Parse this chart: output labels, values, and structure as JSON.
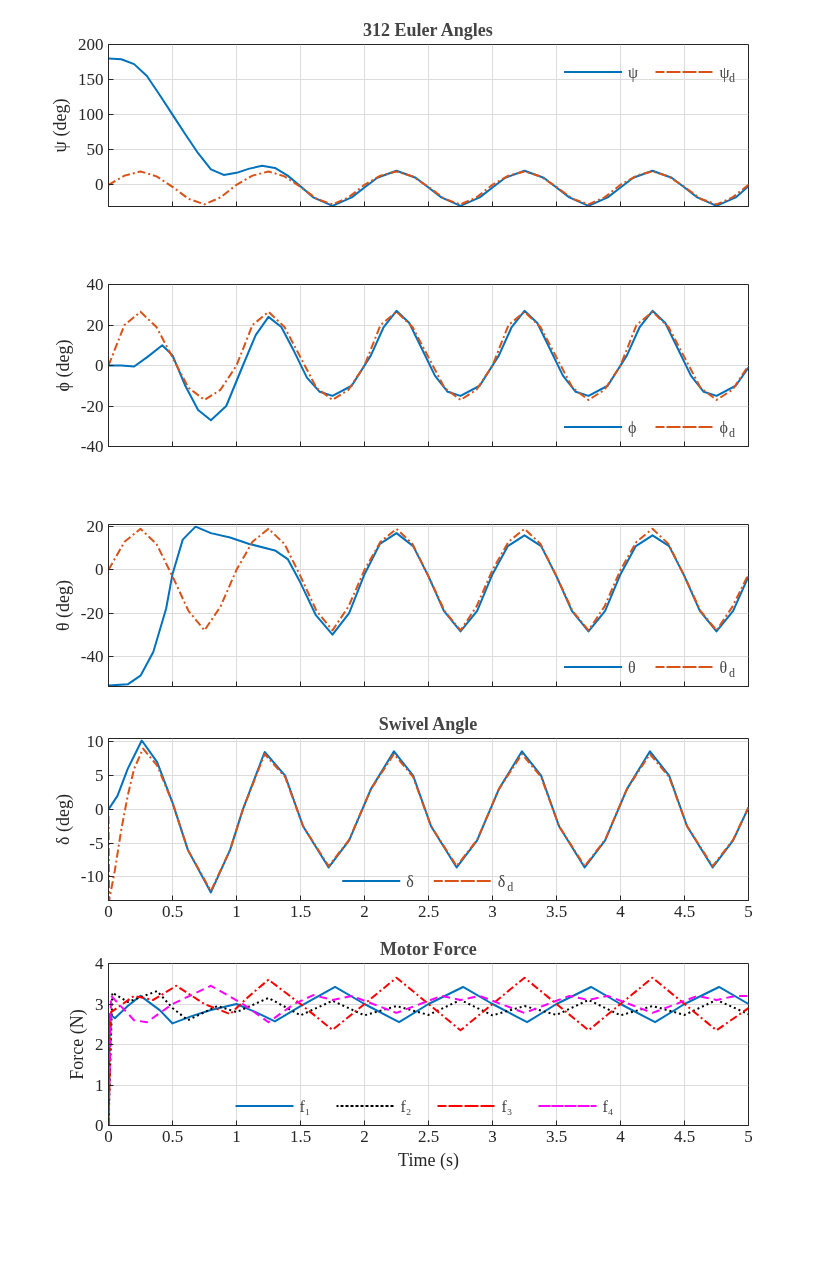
{
  "chart_data": [
    {
      "type": "line",
      "title": "312 Euler Angles",
      "ylabel": "ψ (deg)",
      "xlim": [
        0,
        5
      ],
      "xticks": [
        0,
        0.5,
        1,
        1.5,
        2,
        2.5,
        3,
        3.5,
        4,
        4.5,
        5
      ],
      "ylim": [
        -31,
        200
      ],
      "yticks": [
        0,
        50,
        100,
        150,
        200
      ],
      "grid": true,
      "legend": "top right",
      "tick_labels": "y",
      "series": [
        {
          "name": "ψ",
          "color": "#0072bd",
          "line_style": "solid",
          "x": [
            0,
            0.1,
            0.2,
            0.3,
            0.4,
            0.5,
            0.6,
            0.7,
            0.8,
            0.9,
            1.0,
            1.1,
            1.2,
            1.3,
            1.4,
            1.5,
            1.6,
            1.75,
            1.9,
            2.0,
            2.1,
            2.25,
            2.4,
            2.5,
            2.6,
            2.75,
            2.9,
            3.0,
            3.1,
            3.25,
            3.4,
            3.5,
            3.6,
            3.75,
            3.9,
            4.0,
            4.1,
            4.25,
            4.4,
            4.5,
            4.6,
            4.75,
            4.9,
            5.0
          ],
          "values": [
            180,
            179,
            172,
            155,
            128,
            100,
            72,
            45,
            22,
            14,
            17,
            23,
            27,
            24,
            13,
            -2,
            -18,
            -30,
            -18,
            -4,
            10,
            20,
            10,
            -4,
            -18,
            -30,
            -18,
            -4,
            10,
            20,
            10,
            -4,
            -18,
            -30,
            -18,
            -4,
            10,
            20,
            10,
            -4,
            -18,
            -30,
            -18,
            -2
          ]
        },
        {
          "name": "ψ$_{d}$",
          "color": "#d95319",
          "line_style": "dashdot",
          "x": [
            0,
            0.125,
            0.25,
            0.375,
            0.5,
            0.625,
            0.75,
            0.875,
            1,
            1.125,
            1.25,
            1.375,
            1.5,
            1.625,
            1.75,
            1.875,
            2,
            2.125,
            2.25,
            2.375,
            2.5,
            2.625,
            2.75,
            2.875,
            3,
            3.125,
            3.25,
            3.375,
            3.5,
            3.625,
            3.75,
            3.875,
            4,
            4.125,
            4.25,
            4.375,
            4.5,
            4.625,
            4.75,
            4.875,
            5
          ],
          "values": [
            0,
            13,
            19,
            12,
            -3,
            -20,
            -28,
            -18,
            0,
            13,
            19,
            12,
            -3,
            -20,
            -28,
            -18,
            0,
            13,
            19,
            12,
            -3,
            -20,
            -28,
            -18,
            0,
            13,
            19,
            12,
            -3,
            -20,
            -28,
            -18,
            0,
            13,
            19,
            12,
            -3,
            -20,
            -28,
            -18,
            0
          ]
        }
      ]
    },
    {
      "type": "line",
      "ylabel": "ϕ (deg)",
      "xlim": [
        0,
        5
      ],
      "xticks": [
        0,
        0.5,
        1,
        1.5,
        2,
        2.5,
        3,
        3.5,
        4,
        4.5,
        5
      ],
      "ylim": [
        -40,
        40
      ],
      "yticks": [
        -40,
        -20,
        0,
        20,
        40
      ],
      "grid": true,
      "legend": "bottom right",
      "tick_labels": "y",
      "series": [
        {
          "name": "ϕ",
          "color": "#0072bd",
          "line_style": "solid",
          "x": [
            0,
            0.1,
            0.2,
            0.3,
            0.42,
            0.5,
            0.6,
            0.7,
            0.8,
            0.92,
            1.05,
            1.15,
            1.25,
            1.35,
            1.45,
            1.55,
            1.65,
            1.75,
            1.9,
            2.05,
            2.15,
            2.25,
            2.35,
            2.45,
            2.55,
            2.65,
            2.75,
            2.9,
            3.05,
            3.15,
            3.25,
            3.35,
            3.45,
            3.55,
            3.65,
            3.75,
            3.9,
            4.05,
            4.15,
            4.25,
            4.35,
            4.45,
            4.55,
            4.65,
            4.75,
            4.9,
            5.0
          ],
          "values": [
            0,
            0,
            -0.5,
            4,
            10,
            5,
            -10,
            -22,
            -27,
            -20,
            0,
            15,
            24,
            19,
            7,
            -6,
            -13,
            -15,
            -10,
            5,
            19,
            27,
            21,
            8,
            -5,
            -13,
            -15,
            -10,
            5,
            19,
            27,
            21,
            8,
            -5,
            -13,
            -15,
            -10,
            5,
            19,
            27,
            21,
            8,
            -5,
            -13,
            -15,
            -10,
            -1
          ]
        },
        {
          "name": "ϕ$_{d}$",
          "color": "#d95319",
          "line_style": "dashdot",
          "x": [
            0,
            0.125,
            0.25,
            0.375,
            0.5,
            0.625,
            0.75,
            0.875,
            1,
            1.125,
            1.25,
            1.375,
            1.5,
            1.625,
            1.75,
            1.875,
            2,
            2.125,
            2.25,
            2.375,
            2.5,
            2.625,
            2.75,
            2.875,
            3,
            3.125,
            3.25,
            3.375,
            3.5,
            3.625,
            3.75,
            3.875,
            4,
            4.125,
            4.25,
            4.375,
            4.5,
            4.625,
            4.75,
            4.875,
            5
          ],
          "values": [
            0,
            20,
            26.5,
            19,
            4,
            -11,
            -17,
            -12,
            0,
            20,
            26.5,
            19,
            4,
            -11,
            -17,
            -12,
            0,
            20,
            26.5,
            19,
            4,
            -11,
            -17,
            -12,
            0,
            20,
            26.5,
            19,
            4,
            -11,
            -17,
            -12,
            0,
            20,
            26.5,
            19,
            4,
            -11,
            -17,
            -12,
            0
          ]
        }
      ]
    },
    {
      "type": "line",
      "ylabel": "θ (deg)",
      "xlim": [
        0,
        5
      ],
      "xticks": [
        0,
        0.5,
        1,
        1.5,
        2,
        2.5,
        3,
        3.5,
        4,
        4.5,
        5
      ],
      "ylim": [
        -54,
        21
      ],
      "yticks": [
        -40,
        -20,
        0,
        20
      ],
      "grid": true,
      "legend": "bottom right",
      "tick_labels": "y",
      "series": [
        {
          "name": "θ",
          "color": "#0072bd",
          "line_style": "solid",
          "x": [
            0,
            0.15,
            0.25,
            0.35,
            0.45,
            0.5,
            0.58,
            0.68,
            0.8,
            0.95,
            1.1,
            1.3,
            1.4,
            1.5,
            1.62,
            1.75,
            1.88,
            2.0,
            2.12,
            2.25,
            2.38,
            2.5,
            2.62,
            2.75,
            2.88,
            3.0,
            3.12,
            3.25,
            3.38,
            3.5,
            3.62,
            3.75,
            3.88,
            4.0,
            4.12,
            4.25,
            4.38,
            4.5,
            4.62,
            4.75,
            4.88,
            5.0
          ],
          "values": [
            -53.5,
            -53,
            -49,
            -38,
            -18,
            -2,
            14,
            20,
            17,
            15,
            12,
            9,
            5,
            -6,
            -21,
            -30,
            -20,
            -2,
            12,
            17,
            11,
            -3,
            -19,
            -28.5,
            -19,
            -2,
            11,
            16,
            11,
            -3,
            -19,
            -28.5,
            -19,
            -2,
            11,
            16,
            11,
            -3,
            -19,
            -28.5,
            -19,
            -3
          ]
        },
        {
          "name": "θ$_{d}$",
          "color": "#d95319",
          "line_style": "dashdot",
          "x": [
            0,
            0.125,
            0.25,
            0.375,
            0.5,
            0.625,
            0.75,
            0.875,
            1,
            1.125,
            1.25,
            1.375,
            1.5,
            1.625,
            1.75,
            1.875,
            2,
            2.125,
            2.25,
            2.375,
            2.5,
            2.625,
            2.75,
            2.875,
            3,
            3.125,
            3.25,
            3.375,
            3.5,
            3.625,
            3.75,
            3.875,
            4,
            4.125,
            4.25,
            4.375,
            4.5,
            4.625,
            4.75,
            4.875,
            5
          ],
          "values": [
            0,
            13,
            19,
            12,
            -3,
            -19,
            -28,
            -17,
            0,
            13,
            19,
            12,
            -3,
            -19,
            -28,
            -17,
            0,
            13,
            19,
            12,
            -3,
            -19,
            -28,
            -17,
            0,
            13,
            19,
            12,
            -3,
            -19,
            -28,
            -17,
            0,
            13,
            19,
            12,
            -3,
            -19,
            -28,
            -17,
            -2
          ]
        }
      ]
    },
    {
      "type": "line",
      "title": "Swivel Angle",
      "ylabel": "δ (deg)",
      "xlim": [
        0,
        5
      ],
      "xticks": [
        0,
        0.5,
        1,
        1.5,
        2,
        2.5,
        3,
        3.5,
        4,
        4.5,
        5
      ],
      "ylim": [
        -13.5,
        10.5
      ],
      "yticks": [
        -10,
        -5,
        0,
        5,
        10
      ],
      "grid": true,
      "legend": "bottom",
      "series": [
        {
          "name": "δ",
          "color": "#0072bd",
          "line_style": "solid",
          "x": [
            0,
            0.07,
            0.15,
            0.26,
            0.38,
            0.5,
            0.62,
            0.8,
            0.95,
            1.05,
            1.22,
            1.38,
            1.52,
            1.72,
            1.88,
            2.05,
            2.23,
            2.38,
            2.52,
            2.72,
            2.88,
            3.05,
            3.23,
            3.38,
            3.52,
            3.72,
            3.88,
            4.05,
            4.23,
            4.38,
            4.52,
            4.72,
            4.88,
            5.0
          ],
          "values": [
            0,
            2,
            6,
            10.2,
            7,
            1,
            -6,
            -12.3,
            -6,
            0,
            8.5,
            5,
            -2.5,
            -8.6,
            -4.6,
            3,
            8.6,
            5,
            -2.5,
            -8.6,
            -4.6,
            3,
            8.6,
            5,
            -2.5,
            -8.6,
            -4.6,
            3,
            8.6,
            5,
            -2.5,
            -8.6,
            -4.6,
            0.3
          ]
        },
        {
          "name": "δ$_{d}$",
          "color": "#d95319",
          "line_style": "dashdot",
          "x": [
            0,
            0.005,
            0.05,
            0.1,
            0.15,
            0.2,
            0.27,
            0.38,
            0.5,
            0.62,
            0.8,
            0.95,
            1.05,
            1.22,
            1.38,
            1.52,
            1.72,
            1.88,
            2.05,
            2.23,
            2.38,
            2.52,
            2.72,
            2.88,
            3.05,
            3.23,
            3.38,
            3.52,
            3.72,
            3.88,
            4.05,
            4.23,
            4.38,
            4.52,
            4.72,
            4.88,
            5.0
          ],
          "values": [
            -1,
            -13.5,
            -9,
            -3,
            2,
            6,
            9,
            6.5,
            1,
            -6,
            -12.1,
            -6,
            0,
            8.2,
            4.8,
            -2.5,
            -8.4,
            -4.5,
            3,
            8.2,
            4.8,
            -2.5,
            -8.4,
            -4.5,
            3,
            8.2,
            4.8,
            -2.5,
            -8.4,
            -4.5,
            3,
            8.2,
            4.8,
            -2.5,
            -8.4,
            -4.5,
            0.3
          ]
        }
      ]
    },
    {
      "type": "line",
      "title": "Motor Force",
      "xlabel": "Time (s)",
      "ylabel": "Force (N)",
      "xlim": [
        0,
        5
      ],
      "xticks": [
        0,
        0.5,
        1,
        1.5,
        2,
        2.5,
        3,
        3.5,
        4,
        4.5,
        5
      ],
      "ylim": [
        0,
        4
      ],
      "yticks": [
        0,
        1,
        2,
        3,
        4
      ],
      "grid": true,
      "legend": "bottom",
      "series": [
        {
          "name": "f₁",
          "color": "#0072bd",
          "line_style": "solid",
          "x": [
            0,
            0.01,
            0.05,
            0.15,
            0.25,
            0.4,
            0.5,
            0.65,
            0.8,
            1.0,
            1.15,
            1.3,
            1.5,
            1.77,
            2.0,
            2.27,
            2.5,
            2.77,
            3.0,
            3.27,
            3.5,
            3.77,
            4.0,
            4.27,
            4.5,
            4.77,
            5.0
          ],
          "values": [
            0,
            2.75,
            2.65,
            2.95,
            3.2,
            2.85,
            2.52,
            2.7,
            2.85,
            3.0,
            2.8,
            2.57,
            2.95,
            3.42,
            3.0,
            2.55,
            3.0,
            3.42,
            3.0,
            2.55,
            3.0,
            3.42,
            3.0,
            2.55,
            3.0,
            3.42,
            3.0
          ]
        },
        {
          "name": "f₂",
          "color": "#000000",
          "line_style": "dotted",
          "x": [
            0,
            0.03,
            0.15,
            0.38,
            0.5,
            0.62,
            0.85,
            1.0,
            1.25,
            1.5,
            1.75,
            2.0,
            2.25,
            2.5,
            2.75,
            3.0,
            3.25,
            3.5,
            3.75,
            4.0,
            4.25,
            4.5,
            4.75,
            5.0
          ],
          "values": [
            0,
            3.28,
            3.05,
            3.32,
            2.9,
            2.6,
            2.95,
            2.8,
            3.15,
            2.72,
            3.08,
            2.72,
            2.95,
            2.73,
            3.1,
            2.72,
            2.95,
            2.73,
            3.1,
            2.72,
            2.95,
            2.73,
            3.1,
            2.75
          ]
        },
        {
          "name": "f₃",
          "color": "#ff0000",
          "line_style": "dashdot",
          "x": [
            0,
            0.02,
            0.2,
            0.35,
            0.53,
            0.75,
            0.95,
            1.1,
            1.25,
            1.5,
            1.75,
            2.0,
            2.25,
            2.5,
            2.75,
            3.0,
            3.25,
            3.5,
            3.75,
            4.0,
            4.25,
            4.5,
            4.75,
            5.0
          ],
          "values": [
            0,
            2.8,
            3.2,
            3.1,
            3.45,
            3.0,
            2.75,
            3.2,
            3.6,
            3.0,
            2.36,
            3.0,
            3.65,
            3.0,
            2.35,
            3.0,
            3.65,
            3.0,
            2.35,
            3.0,
            3.65,
            3.0,
            2.35,
            2.9
          ]
        },
        {
          "name": "f₄",
          "color": "#ff00ff",
          "line_style": "dashed",
          "x": [
            0,
            0.02,
            0.2,
            0.3,
            0.5,
            0.8,
            1.05,
            1.25,
            1.45,
            1.6,
            1.75,
            1.9,
            2.25,
            2.6,
            2.75,
            2.9,
            3.25,
            3.6,
            3.75,
            3.9,
            4.25,
            4.6,
            4.75,
            4.9,
            5.0
          ],
          "values": [
            0,
            3.2,
            2.6,
            2.55,
            3.0,
            3.45,
            3.0,
            2.55,
            3.0,
            3.22,
            3.1,
            3.2,
            2.78,
            3.2,
            3.1,
            3.2,
            2.78,
            3.2,
            3.1,
            3.2,
            2.78,
            3.2,
            3.1,
            3.2,
            3.2
          ]
        }
      ]
    }
  ]
}
